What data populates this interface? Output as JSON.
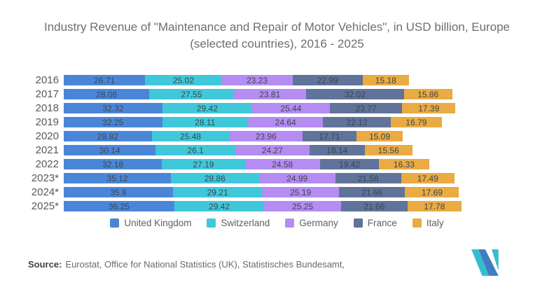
{
  "title": "Industry Revenue of \"Maintenance and Repair of Motor Vehicles\", in USD billion, Europe (selected countries), 2016 - 2025",
  "chart_data": {
    "type": "bar",
    "orientation": "horizontal",
    "stacked": true,
    "grid": false,
    "value_labels": true,
    "legend_position": "bottom",
    "categories": [
      "2016",
      "2017",
      "2018",
      "2019",
      "2020",
      "2021",
      "2022",
      "2023*",
      "2024*",
      "2025*"
    ],
    "series": [
      {
        "name": "United Kingdom",
        "color": "#4a86d8",
        "values": [
          26.71,
          28.08,
          32.32,
          32.25,
          28.82,
          30.14,
          32.18,
          35.12,
          35.8,
          36.25
        ]
      },
      {
        "name": "Switzerland",
        "color": "#3fc8d9",
        "values": [
          25.02,
          27.55,
          29.42,
          28.11,
          25.48,
          26.1,
          27.19,
          28.86,
          29.21,
          29.42
        ]
      },
      {
        "name": "Germany",
        "color": "#b48cf2",
        "values": [
          23.23,
          23.81,
          25.44,
          24.64,
          23.96,
          24.27,
          24.58,
          24.99,
          25.19,
          25.25
        ]
      },
      {
        "name": "France",
        "color": "#60739a",
        "values": [
          22.99,
          32.02,
          23.77,
          22.12,
          17.71,
          18.14,
          19.42,
          21.58,
          21.66,
          21.66
        ]
      },
      {
        "name": "Italy",
        "color": "#e9ab42",
        "values": [
          15.18,
          15.86,
          17.39,
          16.79,
          15.09,
          15.56,
          16.33,
          17.49,
          17.69,
          17.78
        ]
      }
    ],
    "value_text_color": "#3e4551",
    "category_text_color": "#55595c"
  },
  "source": {
    "label": "Source:",
    "text": "Eurostat, Office for National Statistics (UK), Statistisches Bundesamt,"
  },
  "logo": {
    "name": "mordor-intelligence-logo",
    "teal": "#35bccd",
    "blue": "#3f7dbe"
  }
}
